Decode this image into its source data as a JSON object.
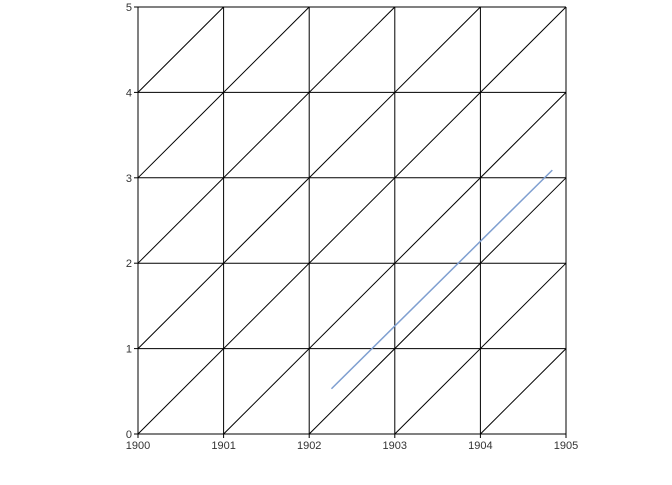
{
  "chart_data": {
    "type": "line",
    "title": "",
    "xlabel": "",
    "ylabel": "",
    "xlim": [
      1900,
      1905
    ],
    "ylim": [
      0,
      5
    ],
    "x_ticks": [
      1900,
      1901,
      1902,
      1903,
      1904,
      1905
    ],
    "y_ticks": [
      0,
      1,
      2,
      3,
      4,
      5
    ],
    "grid": true,
    "diagonal_grid": true,
    "series": [
      {
        "color": "#7f9fd0",
        "points": [
          {
            "x": 1902.26,
            "y": 0.53
          },
          {
            "x": 1904.84,
            "y": 3.09
          }
        ]
      }
    ]
  },
  "colors": {
    "grid": "#000000",
    "axis_text": "#333333"
  }
}
